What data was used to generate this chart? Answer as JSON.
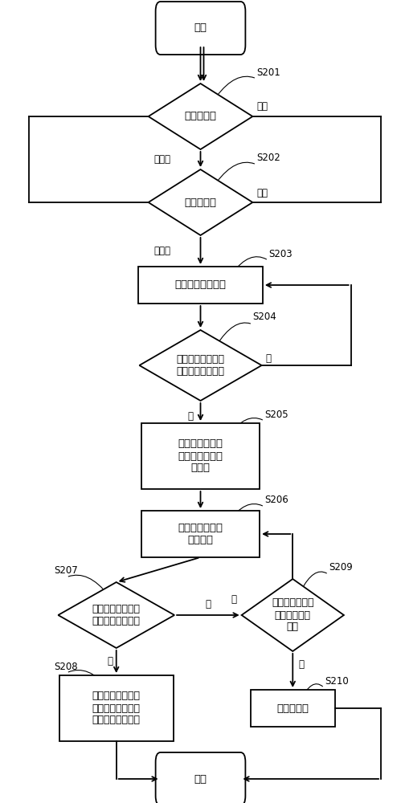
{
  "bg_color": "#ffffff",
  "lc": "#000000",
  "lw": 1.3,
  "fs_main": 9.5,
  "fs_label": 8.5,
  "fs_step": 8.5,
  "start_text": "开始",
  "end_text": "结束",
  "d1_text": "料位计诊断",
  "d2_text": "执行器诊断",
  "r3_text": "闸门布料模型启动",
  "d4_text": "料厚偏差变化率大\n于第一预设阈値？",
  "r5_text": "暂停闸门布料模\n型、记录当前闸\n门开度",
  "r6_text": "增大开度至第一\n预设开度",
  "d7_text": "料厚偏差变化率大\n于第二预设阈値？",
  "d9_text": "当前实际开度达\n到预设上限开\n度？",
  "r8_text": "恢复至卡料前记录\n的闸门开度，并恢\n复闸门布料模型恢",
  "r10_text": "重故障报警",
  "lbl_S201": "S201",
  "lbl_S202": "S202",
  "lbl_S203": "S203",
  "lbl_S204": "S204",
  "lbl_S205": "S205",
  "lbl_S206": "S206",
  "lbl_S207": "S207",
  "lbl_S209": "S209",
  "lbl_S208": "S208",
  "lbl_S210": "S210",
  "txt_fault": "故障",
  "txt_normal": "是正常",
  "txt_yes": "是",
  "txt_no": "否"
}
